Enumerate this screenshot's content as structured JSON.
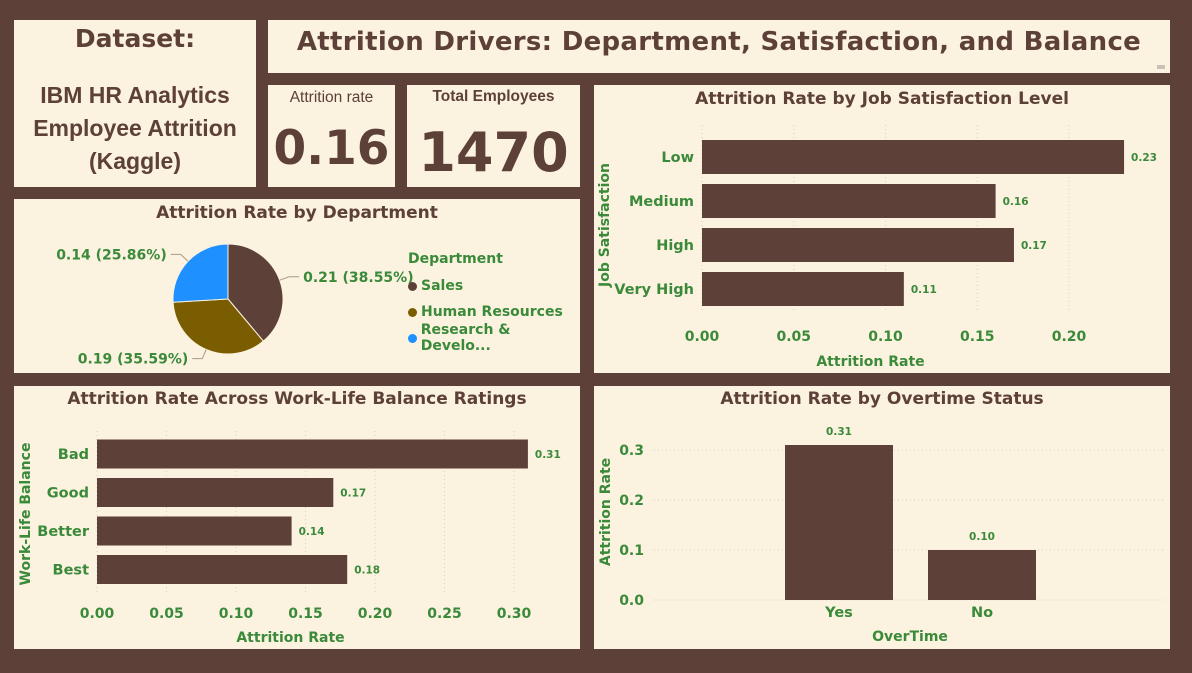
{
  "dataset_card": {
    "heading": "Dataset:",
    "line1": "IBM HR Analytics",
    "line2": "Employee Attrition",
    "line3": "(Kaggle)"
  },
  "header": {
    "title": "Attrition Drivers: Department, Satisfaction, and Balance"
  },
  "kpis": {
    "attrition_label": "Attrition rate",
    "attrition_value": "0.16",
    "employees_label": "Total Employees",
    "employees_value": "1470"
  },
  "colors": {
    "brown": "#5d4037",
    "olive": "#7a5d00",
    "blue": "#1e90ff",
    "green_text": "#3a8a3a",
    "panel_bg": "#fbf2e0"
  },
  "chart_data": [
    {
      "id": "department",
      "type": "pie",
      "title": "Attrition Rate by Department",
      "legend_title": "Department",
      "legend_position": "right",
      "slices": [
        {
          "name": "Sales",
          "value": 0.21,
          "label": "0.21 (38.55%)",
          "color": "#5d4037"
        },
        {
          "name": "Human Resources",
          "value": 0.19,
          "label": "0.19 (35.59%)",
          "color": "#7a5d00"
        },
        {
          "name": "Research & Develo...",
          "value": 0.14,
          "label": "0.14 (25.86%)",
          "color": "#1e90ff"
        }
      ]
    },
    {
      "id": "satisfaction",
      "type": "bar",
      "orientation": "horizontal",
      "title": "Attrition Rate by Job Satisfaction Level",
      "ylabel": "Job Satisfaction",
      "xlabel": "Attrition Rate",
      "categories": [
        "Low",
        "Medium",
        "High",
        "Very High"
      ],
      "values": [
        0.23,
        0.16,
        0.17,
        0.11
      ],
      "value_labels": [
        "0.23",
        "0.16",
        "0.17",
        "0.11"
      ],
      "xlim": [
        0,
        0.23
      ],
      "xticks": [
        "0.00",
        "0.05",
        "0.10",
        "0.15",
        "0.20"
      ],
      "grid": true
    },
    {
      "id": "worklife",
      "type": "bar",
      "orientation": "horizontal",
      "title": "Attrition Rate Across Work-Life Balance Ratings",
      "ylabel": "Work-Life Balance",
      "xlabel": "Attrition Rate",
      "categories": [
        "Bad",
        "Good",
        "Better",
        "Best"
      ],
      "values": [
        0.31,
        0.17,
        0.14,
        0.18
      ],
      "value_labels": [
        "0.31",
        "0.17",
        "0.14",
        "0.18"
      ],
      "xlim": [
        0,
        0.31
      ],
      "xticks": [
        "0.00",
        "0.05",
        "0.10",
        "0.15",
        "0.20",
        "0.25",
        "0.30"
      ],
      "grid": true
    },
    {
      "id": "overtime",
      "type": "bar",
      "orientation": "vertical",
      "title": "Attrition Rate by Overtime Status",
      "ylabel": "Attrition Rate",
      "xlabel": "OverTime",
      "categories": [
        "Yes",
        "No"
      ],
      "values": [
        0.31,
        0.1
      ],
      "value_labels": [
        "0.31",
        "0.10"
      ],
      "ylim": [
        0,
        0.3
      ],
      "yticks": [
        "0.0",
        "0.1",
        "0.2",
        "0.3"
      ],
      "grid": true
    }
  ]
}
